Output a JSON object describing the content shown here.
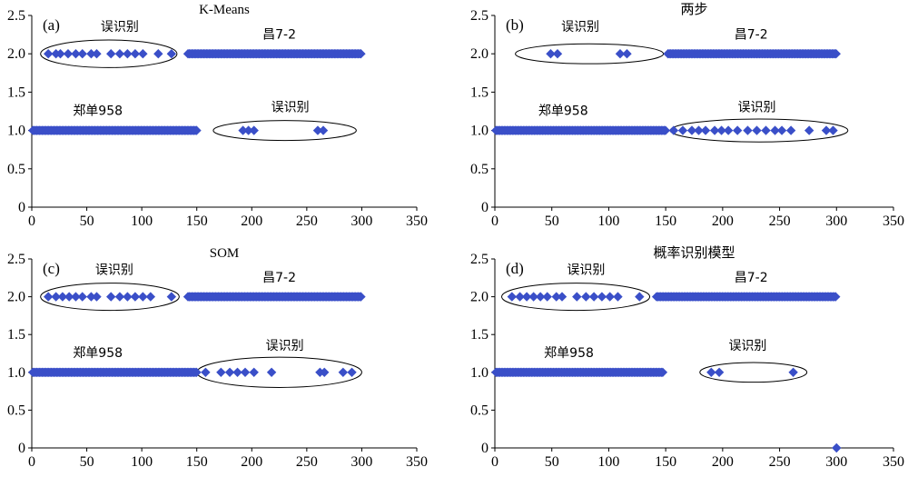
{
  "chart_data": [
    {
      "type": "scatter",
      "panel_label": "(a)",
      "title": "K-Means",
      "xlim": [
        0,
        350
      ],
      "ylim": [
        0,
        2.5
      ],
      "xticks": [
        "0",
        "50",
        "100",
        "150",
        "200",
        "250",
        "300",
        "350"
      ],
      "yticks": [
        "0",
        "0.5",
        "1.0",
        "1.5",
        "2.0",
        "2.5"
      ],
      "marker_color": "#3A4FC8",
      "series": [
        {
          "x_range": [
            1,
            150
          ],
          "y": 1.0
        },
        {
          "x_points": [
            192,
            197,
            202,
            260,
            265
          ],
          "y": 1.0
        },
        {
          "x_points": [
            15,
            22,
            26,
            33,
            40,
            46,
            54,
            59,
            72,
            80,
            87,
            94,
            101,
            115,
            127
          ],
          "y": 2.0
        },
        {
          "x_range": [
            142,
            300
          ],
          "y": 2.0
        }
      ],
      "annotations": [
        {
          "text": "误识别",
          "x": 80,
          "y": 2.3
        },
        {
          "text": "昌7-2",
          "x": 225,
          "y": 2.2
        },
        {
          "text": "郑单958",
          "x": 60,
          "y": 1.2
        },
        {
          "text": "误识别",
          "x": 235,
          "y": 1.25
        }
      ],
      "ellipses": [
        {
          "cx": 70,
          "cy": 2.0,
          "rx": 62,
          "ry": 0.18
        },
        {
          "cx": 230,
          "cy": 1.0,
          "rx": 65,
          "ry": 0.13
        }
      ]
    },
    {
      "type": "scatter",
      "panel_label": "(b)",
      "title": "两步",
      "xlim": [
        0,
        350
      ],
      "ylim": [
        0,
        2.5
      ],
      "xticks": [
        "0",
        "50",
        "100",
        "150",
        "200",
        "250",
        "300",
        "350"
      ],
      "yticks": [
        "0",
        "0.5",
        "1.0",
        "1.5",
        "2.0",
        "2.5"
      ],
      "marker_color": "#3A4FC8",
      "series": [
        {
          "x_range": [
            1,
            150
          ],
          "y": 1.0
        },
        {
          "x_points": [
            157,
            165,
            173,
            179,
            185,
            193,
            199,
            205,
            213,
            222,
            230,
            238,
            246,
            252,
            260,
            276,
            291,
            297
          ],
          "y": 1.0
        },
        {
          "x_points": [
            49,
            55,
            110,
            116
          ],
          "y": 2.0
        },
        {
          "x_range": [
            152,
            300
          ],
          "y": 2.0
        }
      ],
      "annotations": [
        {
          "text": "误识别",
          "x": 75,
          "y": 2.3
        },
        {
          "text": "昌7-2",
          "x": 225,
          "y": 2.2
        },
        {
          "text": "郑单958",
          "x": 60,
          "y": 1.2
        },
        {
          "text": "误识别",
          "x": 230,
          "y": 1.25
        }
      ],
      "ellipses": [
        {
          "cx": 83,
          "cy": 2.0,
          "rx": 65,
          "ry": 0.13
        },
        {
          "cx": 232,
          "cy": 1.0,
          "rx": 78,
          "ry": 0.15
        }
      ]
    },
    {
      "type": "scatter",
      "panel_label": "(c)",
      "title": "SOM",
      "xlim": [
        0,
        350
      ],
      "ylim": [
        0,
        2.5
      ],
      "xticks": [
        "0",
        "50",
        "100",
        "150",
        "200",
        "250",
        "300",
        "350"
      ],
      "yticks": [
        "0",
        "0.5",
        "1.0",
        "1.5",
        "2.0",
        "2.5"
      ],
      "marker_color": "#3A4FC8",
      "series": [
        {
          "x_range": [
            1,
            150
          ],
          "y": 1.0
        },
        {
          "x_points": [
            158,
            172,
            180,
            187,
            194,
            202,
            218,
            262,
            266,
            283,
            291
          ],
          "y": 1.0
        },
        {
          "x_points": [
            15,
            22,
            28,
            34,
            40,
            46,
            54,
            59,
            72,
            80,
            87,
            94,
            101,
            108,
            127
          ],
          "y": 2.0
        },
        {
          "x_range": [
            142,
            300
          ],
          "y": 2.0
        }
      ],
      "annotations": [
        {
          "text": "误识别",
          "x": 75,
          "y": 2.3
        },
        {
          "text": "昌7-2",
          "x": 225,
          "y": 2.2
        },
        {
          "text": "郑单958",
          "x": 60,
          "y": 1.2
        },
        {
          "text": "误识别",
          "x": 230,
          "y": 1.3
        }
      ],
      "ellipses": [
        {
          "cx": 71,
          "cy": 2.0,
          "rx": 63,
          "ry": 0.18
        },
        {
          "cx": 225,
          "cy": 1.0,
          "rx": 75,
          "ry": 0.2
        }
      ]
    },
    {
      "type": "scatter",
      "panel_label": "(d)",
      "title": "概率识别模型",
      "xlim": [
        0,
        350
      ],
      "ylim": [
        0,
        2.5
      ],
      "xticks": [
        "0",
        "50",
        "100",
        "150",
        "200",
        "250",
        "300",
        "350"
      ],
      "yticks": [
        "0",
        "0.5",
        "1.0",
        "1.5",
        "2.0",
        "2.5"
      ],
      "marker_color": "#3A4FC8",
      "series": [
        {
          "x_range": [
            1,
            148
          ],
          "y": 1.0
        },
        {
          "x_points": [
            190,
            197,
            262
          ],
          "y": 1.0
        },
        {
          "x_points": [
            15,
            22,
            28,
            34,
            40,
            46,
            54,
            59,
            72,
            80,
            87,
            94,
            101,
            108,
            127
          ],
          "y": 2.0
        },
        {
          "x_range": [
            142,
            300
          ],
          "y": 2.0
        },
        {
          "x_points": [
            300
          ],
          "y": 0.0
        }
      ],
      "annotations": [
        {
          "text": "误识别",
          "x": 80,
          "y": 2.3
        },
        {
          "text": "昌7-2",
          "x": 225,
          "y": 2.2
        },
        {
          "text": "郑单958",
          "x": 65,
          "y": 1.2
        },
        {
          "text": "误识别",
          "x": 222,
          "y": 1.3
        }
      ],
      "ellipses": [
        {
          "cx": 71,
          "cy": 2.0,
          "rx": 65,
          "ry": 0.18
        },
        {
          "cx": 227,
          "cy": 1.0,
          "rx": 47,
          "ry": 0.13
        }
      ]
    }
  ]
}
